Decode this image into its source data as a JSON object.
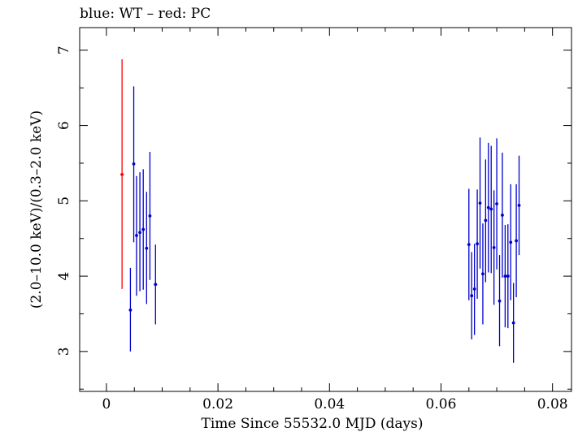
{
  "chart_data": {
    "type": "scatter",
    "title": "blue: WT – red: PC",
    "xlabel": "Time Since 55532.0 MJD (days)",
    "ylabel": "(2.0–10.0 keV)/(0.3–2.0 keV)",
    "xlim": [
      -0.0048,
      0.0834
    ],
    "ylim": [
      2.47,
      7.3
    ],
    "x_ticks": [
      0,
      0.02,
      0.04,
      0.06,
      0.08
    ],
    "x_tick_labels": [
      "0",
      "0.02",
      "0.04",
      "0.06",
      "0.08"
    ],
    "y_ticks": [
      3,
      4,
      5,
      6,
      7
    ],
    "y_tick_labels": [
      "3",
      "4",
      "5",
      "6",
      "7"
    ],
    "grid": false,
    "series": [
      {
        "name": "PC",
        "color": "#ff0000",
        "points": [
          {
            "x": 0.0028,
            "y": 5.35,
            "xerr": 0.0003,
            "ylo": 3.83,
            "yhi": 6.88
          }
        ]
      },
      {
        "name": "WT",
        "color": "#0000cc",
        "points": [
          {
            "x": 0.0043,
            "y": 3.55,
            "xerr": 0.0002,
            "ylo": 3.0,
            "yhi": 4.11
          },
          {
            "x": 0.0049,
            "y": 5.49,
            "xerr": 0.0002,
            "ylo": 4.45,
            "yhi": 6.52
          },
          {
            "x": 0.0054,
            "y": 4.54,
            "xerr": 0.0002,
            "ylo": 3.74,
            "yhi": 5.33
          },
          {
            "x": 0.006,
            "y": 4.58,
            "xerr": 0.0002,
            "ylo": 3.8,
            "yhi": 5.38
          },
          {
            "x": 0.0066,
            "y": 4.62,
            "xerr": 0.0002,
            "ylo": 3.82,
            "yhi": 5.42
          },
          {
            "x": 0.0072,
            "y": 4.37,
            "xerr": 0.0002,
            "ylo": 3.63,
            "yhi": 5.12
          },
          {
            "x": 0.0078,
            "y": 4.8,
            "xerr": 0.0002,
            "ylo": 3.95,
            "yhi": 5.65
          },
          {
            "x": 0.0088,
            "y": 3.89,
            "xerr": 0.0003,
            "ylo": 3.36,
            "yhi": 4.42
          },
          {
            "x": 0.065,
            "y": 4.42,
            "xerr": 0.0002,
            "ylo": 3.68,
            "yhi": 5.16
          },
          {
            "x": 0.0655,
            "y": 3.74,
            "xerr": 0.0002,
            "ylo": 3.16,
            "yhi": 4.32
          },
          {
            "x": 0.066,
            "y": 3.83,
            "xerr": 0.0002,
            "ylo": 3.22,
            "yhi": 4.43
          },
          {
            "x": 0.0665,
            "y": 4.43,
            "xerr": 0.0002,
            "ylo": 3.7,
            "yhi": 5.15
          },
          {
            "x": 0.067,
            "y": 4.97,
            "xerr": 0.0002,
            "ylo": 4.1,
            "yhi": 5.84
          },
          {
            "x": 0.0675,
            "y": 4.03,
            "xerr": 0.0002,
            "ylo": 3.36,
            "yhi": 4.7
          },
          {
            "x": 0.068,
            "y": 4.74,
            "xerr": 0.0002,
            "ylo": 3.92,
            "yhi": 5.55
          },
          {
            "x": 0.0685,
            "y": 4.91,
            "xerr": 0.0002,
            "ylo": 4.05,
            "yhi": 5.77
          },
          {
            "x": 0.069,
            "y": 4.89,
            "xerr": 0.0002,
            "ylo": 4.04,
            "yhi": 5.73
          },
          {
            "x": 0.0695,
            "y": 4.38,
            "xerr": 0.0002,
            "ylo": 3.62,
            "yhi": 5.14
          },
          {
            "x": 0.07,
            "y": 4.96,
            "xerr": 0.0002,
            "ylo": 4.09,
            "yhi": 5.83
          },
          {
            "x": 0.0705,
            "y": 3.67,
            "xerr": 0.0002,
            "ylo": 3.07,
            "yhi": 4.28
          },
          {
            "x": 0.071,
            "y": 4.81,
            "xerr": 0.0002,
            "ylo": 3.98,
            "yhi": 5.64
          },
          {
            "x": 0.0715,
            "y": 4.0,
            "xerr": 0.0002,
            "ylo": 3.32,
            "yhi": 4.68
          },
          {
            "x": 0.072,
            "y": 4.0,
            "xerr": 0.0002,
            "ylo": 3.31,
            "yhi": 4.69
          },
          {
            "x": 0.0725,
            "y": 4.45,
            "xerr": 0.0002,
            "ylo": 3.68,
            "yhi": 5.22
          },
          {
            "x": 0.073,
            "y": 3.38,
            "xerr": 0.0002,
            "ylo": 2.85,
            "yhi": 3.91
          },
          {
            "x": 0.0735,
            "y": 4.47,
            "xerr": 0.0002,
            "ylo": 3.72,
            "yhi": 5.22
          },
          {
            "x": 0.074,
            "y": 4.94,
            "xerr": 0.0002,
            "ylo": 4.28,
            "yhi": 5.6
          }
        ]
      }
    ]
  }
}
